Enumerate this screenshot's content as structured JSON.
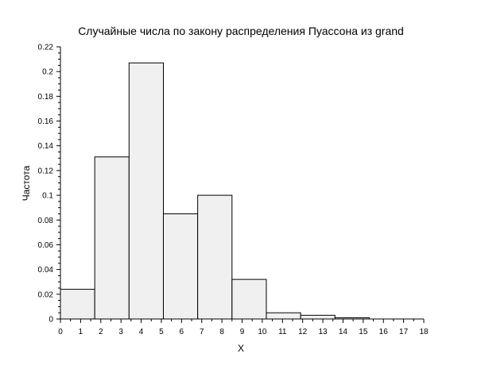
{
  "chart_data": {
    "type": "bar",
    "title": "Случайные числа по закону распределения Пуассона из grand",
    "xlabel": "X",
    "ylabel": "Частота",
    "xlim": [
      0,
      18
    ],
    "ylim": [
      0,
      0.22
    ],
    "x_ticks": [
      "0",
      "1",
      "2",
      "3",
      "4",
      "5",
      "6",
      "7",
      "8",
      "9",
      "10",
      "11",
      "12",
      "13",
      "14",
      "15",
      "16",
      "17",
      "18"
    ],
    "y_ticks": [
      "0",
      "0.02",
      "0.04",
      "0.06",
      "0.08",
      "0.1",
      "0.12",
      "0.14",
      "0.16",
      "0.18",
      "0.2",
      "0.22"
    ],
    "bins": [
      {
        "x0": 0.0,
        "x1": 1.7,
        "value": 0.024
      },
      {
        "x0": 1.7,
        "x1": 3.4,
        "value": 0.131
      },
      {
        "x0": 3.4,
        "x1": 5.1,
        "value": 0.207
      },
      {
        "x0": 5.1,
        "x1": 6.8,
        "value": 0.085
      },
      {
        "x0": 6.8,
        "x1": 8.5,
        "value": 0.1
      },
      {
        "x0": 8.5,
        "x1": 10.2,
        "value": 0.032
      },
      {
        "x0": 10.2,
        "x1": 11.9,
        "value": 0.005
      },
      {
        "x0": 11.9,
        "x1": 13.6,
        "value": 0.003
      },
      {
        "x0": 13.6,
        "x1": 15.3,
        "value": 0.001
      }
    ],
    "colors": {
      "bar_fill": "#f0f0f0",
      "bar_stroke": "#000000",
      "axis": "#000000"
    },
    "grid": false,
    "legend": "none"
  }
}
